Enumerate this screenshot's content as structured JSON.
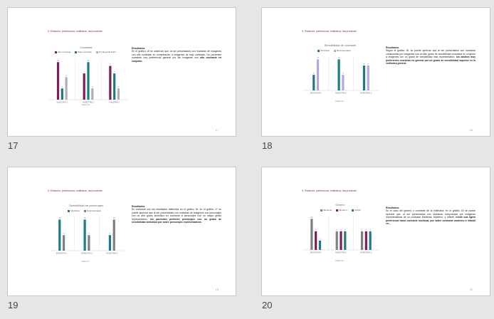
{
  "heading": "9. Relación: preferencia, estilística, ítal prudente",
  "slides": [
    {
      "number": "17",
      "page": "17",
      "text_title": "Resultados.",
      "text_body": "En el gráfico 15 se observan que, al ser presentados con muestras de imágenes con alto contraste en comparación a imágenes de bajo contraste, los pacientes muestran una preferencia general por las imágenes con ",
      "text_bold": "alto contraste en conjunto.",
      "source": "Gráfico 15",
      "chart_data": {
        "type": "bar",
        "title": "Contraste",
        "categories": [
          "MUESTRA 1",
          "MUESTRA 2",
          "GALERÍA 3"
        ],
        "series": [
          {
            "name": "Alto contraste",
            "color": "#7a1f5c",
            "values": [
              10,
              7,
              9
            ]
          },
          {
            "name": "Bajo contraste",
            "color": "#1d7a86",
            "values": [
              3,
              10,
              7
            ]
          },
          {
            "name": "Sin Especificación",
            "color": "#b0b0b0",
            "values": [
              6,
              3,
              3
            ]
          }
        ],
        "ylim": [
          0,
          11
        ]
      }
    },
    {
      "number": "18",
      "page": "18",
      "text_title": "Resultados.",
      "text_body": "Según el gráfico 16, se puede apreciar que al ser presentados con muestras compuestas por imágenes con un alto grado de sensibilidad cromática en conjunto a imágenes con un grado de sensibilidad más representativo, ",
      "text_bold": "los adultos muy preferentes muestran en general por un grado de sensibilidad superior en la estilística general.",
      "source": "Gráfico 16",
      "chart_data": {
        "type": "bar",
        "title": "Sensibilidad de contraste",
        "categories": [
          "MUESTRA 1",
          "MUESTRA 2",
          "MUESTRA 3"
        ],
        "series": [
          {
            "name": "Simbólico",
            "color": "#1d7a86",
            "values": [
              5,
              10,
              8
            ]
          },
          {
            "name": "Representativo",
            "color": "#b5a8e0",
            "values": [
              10,
              5,
              8
            ]
          }
        ],
        "ylim": [
          0,
          11
        ]
      }
    },
    {
      "number": "19",
      "page": "19",
      "text_title": "Resultados.",
      "text_body": "En contraste con los resultados obtenidos en el gráfico 16, en el gráfico 17 se puede apreciar que al ser presentadas con muestras de imágenes con personajes con un alto grado simbólico en contraste a personajes con un mayor grado representativo, ",
      "text_bold": "los pacientes prefieren personajes con un grado de sensibilidad simbólica por sobre personajes representativos.",
      "source": "Gráfico 17",
      "chart_data": {
        "type": "bar",
        "title": "Sensibilidad de personajes",
        "categories": [
          "MUESTRA 1",
          "MUESTRA 2",
          "MUESTRA 3"
        ],
        "series": [
          {
            "name": "Simbólico",
            "color": "#1d7a86",
            "values": [
              10,
              10,
              5
            ]
          },
          {
            "name": "Representativo",
            "color": "#7f7f7f",
            "values": [
              5,
              5,
              10
            ]
          }
        ],
        "ylim": [
          0,
          11
        ]
      }
    },
    {
      "number": "20",
      "page": "20",
      "text_title": "Resultados.",
      "text_body": "En el caso del género o contraste de la estilística, en el gráfico 18 se puede apreciar que, al ser presentados con muestras compuestas por imágenes representativas de un contraste Medieval, Moderno, y Infantil, ",
      "text_bold": "existe una ligera preferencia hacia contraste medieval, por sobre contraste moderno o Infantil en...",
      "source": "Gráfico 18",
      "chart_data": {
        "type": "bar",
        "title": "Género",
        "categories": [
          "MUESTRA 1",
          "MUESTRA 2",
          "MUESTRA 3"
        ],
        "series": [
          {
            "name": "Medieval",
            "color": "#7f7f7f",
            "values": [
              10,
              6,
              6
            ]
          },
          {
            "name": "Moderno",
            "color": "#7a1f5c",
            "values": [
              6,
              6,
              6
            ]
          },
          {
            "name": "Infantil",
            "color": "#1d7a86",
            "values": [
              3,
              6,
              6
            ]
          }
        ],
        "ylim": [
          0,
          11
        ]
      }
    }
  ]
}
